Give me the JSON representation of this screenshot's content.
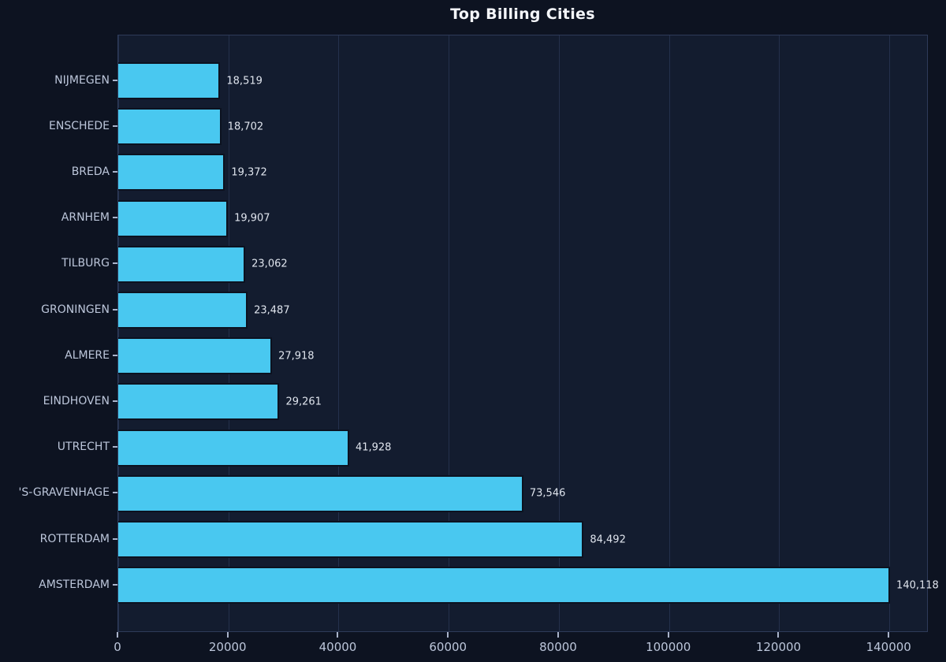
{
  "title": "Top Billing Cities",
  "colors": {
    "figure_background": "#0d1321",
    "plot_background": "#131c2f",
    "bar_fill": "#49c8f0",
    "bar_edge": "#0c1220",
    "gridline": "#24304c",
    "spine": "#2e3b59",
    "tick_label": "#bcc6da",
    "value_label": "#dfe4ed",
    "title_color": "#f4f6fa"
  },
  "chart_data": {
    "type": "bar",
    "orientation": "horizontal",
    "title": "Top Billing Cities",
    "xlabel": "",
    "ylabel": "",
    "categories": [
      "NIJMEGEN",
      "ENSCHEDE",
      "BREDA",
      "ARNHEM",
      "TILBURG",
      "GRONINGEN",
      "ALMERE",
      "EINDHOVEN",
      "UTRECHT",
      "'S-GRAVENHAGE",
      "ROTTERDAM",
      "AMSTERDAM"
    ],
    "values": [
      18519,
      18702,
      19372,
      19907,
      23062,
      23487,
      27918,
      29261,
      41928,
      73546,
      84492,
      140118
    ],
    "value_labels": [
      "18,519",
      "18,702",
      "19,372",
      "19,907",
      "23,062",
      "23,487",
      "27,918",
      "29,261",
      "41,928",
      "73,546",
      "84,492",
      "140,118"
    ],
    "x_ticks": [
      0,
      20000,
      40000,
      60000,
      80000,
      100000,
      120000,
      140000
    ],
    "x_tick_labels": [
      "0",
      "20000",
      "40000",
      "60000",
      "80000",
      "100000",
      "120000",
      "140000"
    ],
    "xlim": [
      0,
      147124
    ],
    "grid": "vertical-only",
    "legend": false
  }
}
